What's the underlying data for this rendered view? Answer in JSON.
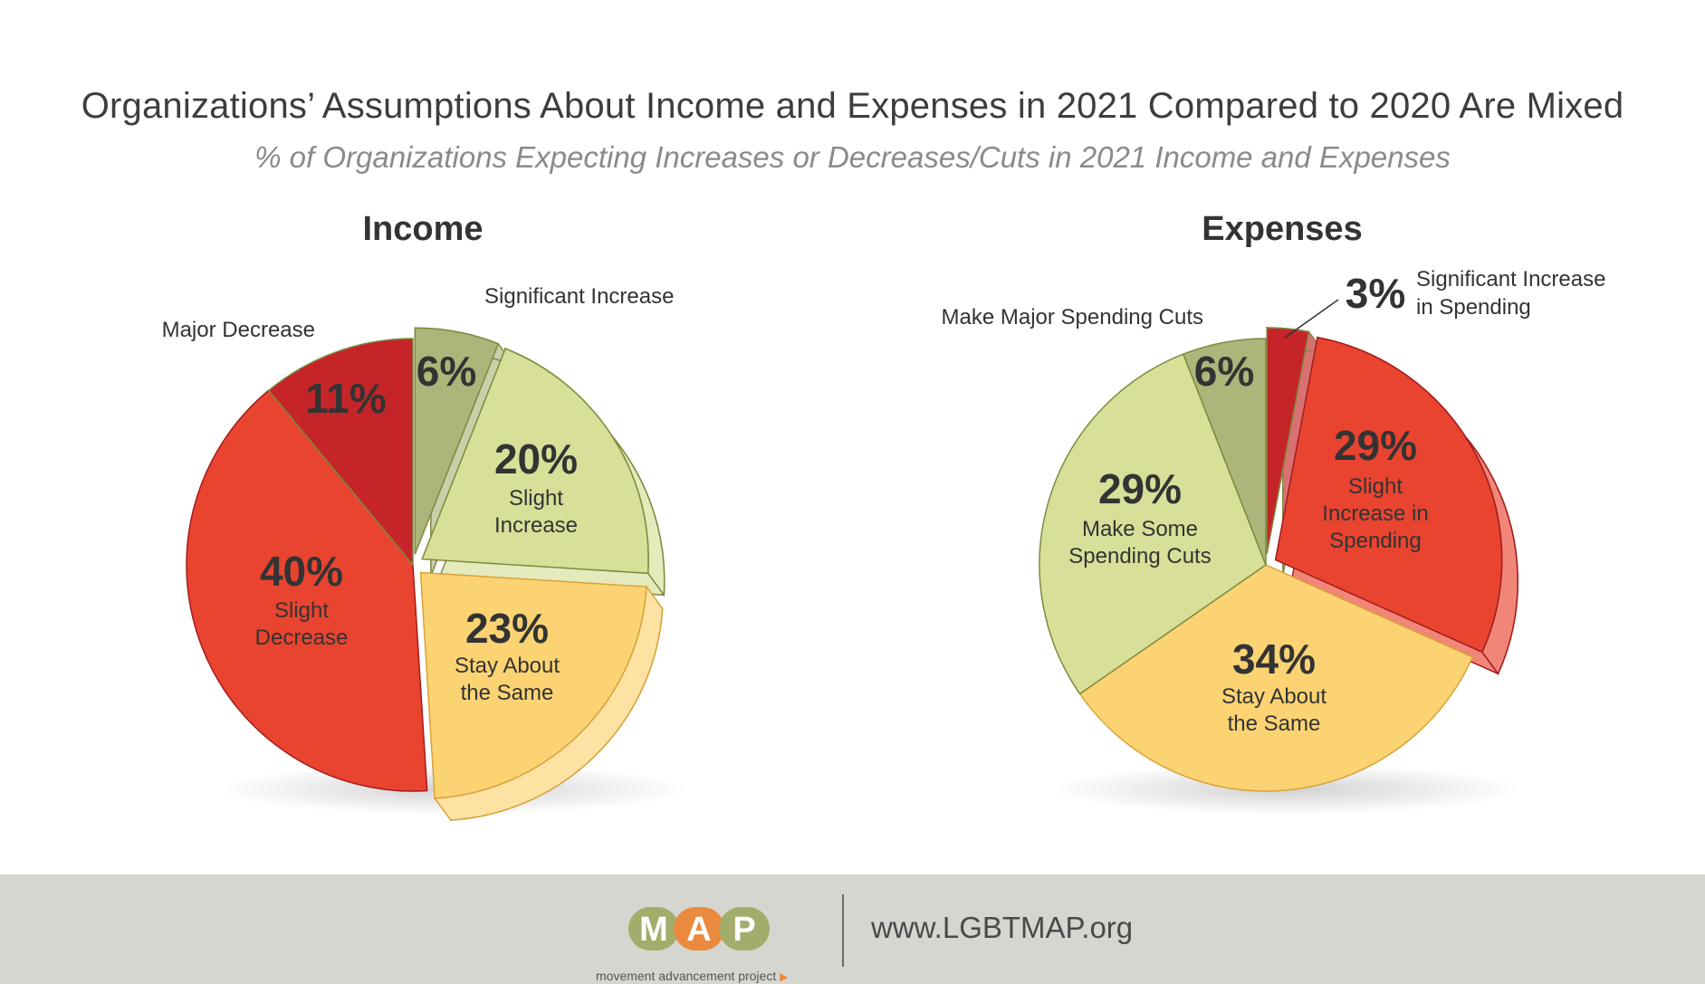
{
  "title": "Organizations’ Assumptions About Income and Expenses in 2021 Compared to 2020 Are Mixed",
  "subtitle": "% of Organizations Expecting Increases or Decreases/Cuts in 2021 Income and Expenses",
  "chart_data": [
    {
      "type": "pie",
      "title": "Income",
      "slices": [
        {
          "label": "Significant Increase",
          "value": 6,
          "color": "#adb57a"
        },
        {
          "label": "Slight Increase",
          "value": 20,
          "color": "#d7df98"
        },
        {
          "label": "Stay About the Same",
          "value": 23,
          "color": "#fcd373"
        },
        {
          "label": "Slight Decrease",
          "value": 40,
          "color": "#e94430"
        },
        {
          "label": "Major Decrease",
          "value": 11,
          "color": "#c52528"
        }
      ],
      "value_labels": [
        "6%",
        "20%",
        "23%",
        "40%",
        "11%"
      ]
    },
    {
      "type": "pie",
      "title": "Expenses",
      "slices": [
        {
          "label": "Significant Increase in Spending",
          "value": 3,
          "color": "#c52528"
        },
        {
          "label": "Slight Increase in Spending",
          "value": 29,
          "color": "#e94430"
        },
        {
          "label": "Stay About the Same",
          "value": 34,
          "color": "#fcd373"
        },
        {
          "label": "Make Some Spending Cuts",
          "value": 29,
          "color": "#d7df98"
        },
        {
          "label": "Make Major Spending Cuts",
          "value": 6,
          "color": "#adb57a"
        }
      ],
      "value_labels": [
        "3%",
        "29%",
        "34%",
        "29%",
        "6%"
      ]
    }
  ],
  "labels": {
    "income": {
      "sig_inc": "Significant Increase",
      "slight_inc_1": "Slight",
      "slight_inc_2": "Increase",
      "same_1": "Stay About",
      "same_2": "the Same",
      "slight_dec_1": "Slight",
      "slight_dec_2": "Decrease",
      "major_dec": "Major Decrease"
    },
    "expenses": {
      "sig_inc_1": "Significant Increase",
      "sig_inc_2": "in Spending",
      "slight_inc_1": "Slight",
      "slight_inc_2": "Increase in",
      "slight_inc_3": "Spending",
      "same_1": "Stay About",
      "same_2": "the Same",
      "some_cuts_1": "Make Some",
      "some_cuts_2": "Spending Cuts",
      "major_cuts": "Make Major Spending Cuts"
    }
  },
  "footer": {
    "logo_letters": [
      "M",
      "A",
      "P"
    ],
    "logo_colors": [
      "#a3ad6b",
      "#e98a3f",
      "#a3ad6b"
    ],
    "tagline": "movement advancement project",
    "website": "www.LGBTMAP.org"
  }
}
